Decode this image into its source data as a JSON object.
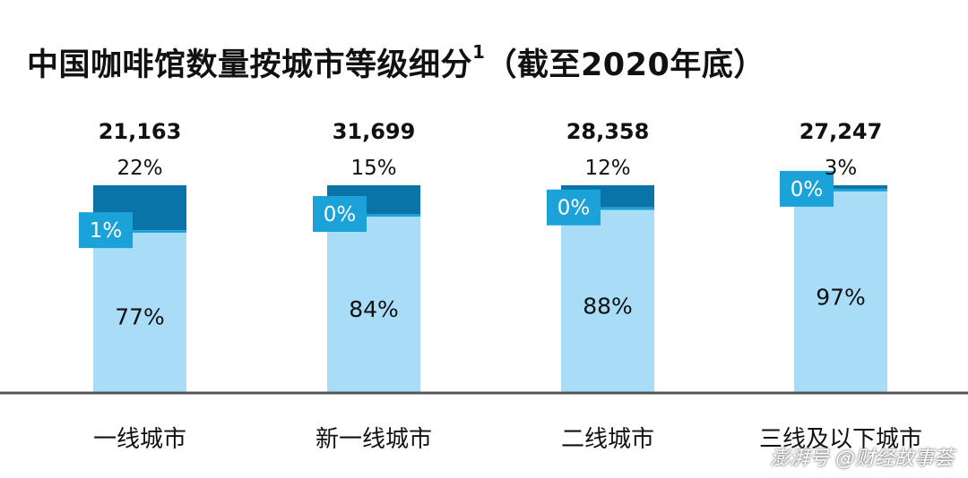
{
  "chart_data": {
    "type": "bar",
    "title": "中国咖啡馆数量按城市等级细分",
    "title_superscript": "1",
    "title_suffix": "（截至2020年底）",
    "categories": [
      "一线城市",
      "新一线城市",
      "二线城市",
      "三线及以下城市"
    ],
    "totals": [
      "21,163",
      "31,699",
      "28,358",
      "27,247"
    ],
    "series": [
      {
        "values": [
          77,
          84,
          88,
          97
        ],
        "labels": [
          "77%",
          "84%",
          "88%",
          "97%"
        ],
        "color": "#a9ddf7"
      },
      {
        "values": [
          1,
          0,
          0,
          0
        ],
        "labels": [
          "1%",
          "0%",
          "0%",
          "0%"
        ],
        "color": "#1ba3d9"
      },
      {
        "values": [
          22,
          15,
          12,
          3
        ],
        "labels": [
          "22%",
          "15%",
          "12%",
          "3%"
        ],
        "color": "#0a74a8"
      }
    ],
    "stacked": true,
    "normalized": true,
    "grid": false,
    "legend": "none"
  },
  "watermark": "澎湃号 @财经故事荟",
  "colors": {
    "baseline": "#555555",
    "text": "#111111",
    "callout_text": "#ffffff"
  }
}
